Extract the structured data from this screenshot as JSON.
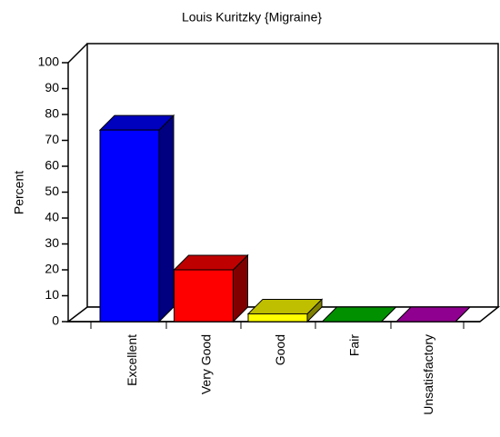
{
  "chart_data": {
    "type": "bar",
    "title": "Louis Kuritzky {Migraine}",
    "y_label": "Percent",
    "categories": [
      "Excellent",
      "Very Good",
      "Good",
      "Fair",
      "Unsatisfactory"
    ],
    "values": [
      74,
      20,
      3,
      0,
      0
    ],
    "colors": [
      "#0000ff",
      "#ff0000",
      "#ffff00",
      "#00c000",
      "#c000c0"
    ],
    "ylim": [
      0,
      100
    ],
    "yticks": [
      0,
      10,
      20,
      30,
      40,
      50,
      60,
      70,
      80,
      90,
      100
    ]
  }
}
